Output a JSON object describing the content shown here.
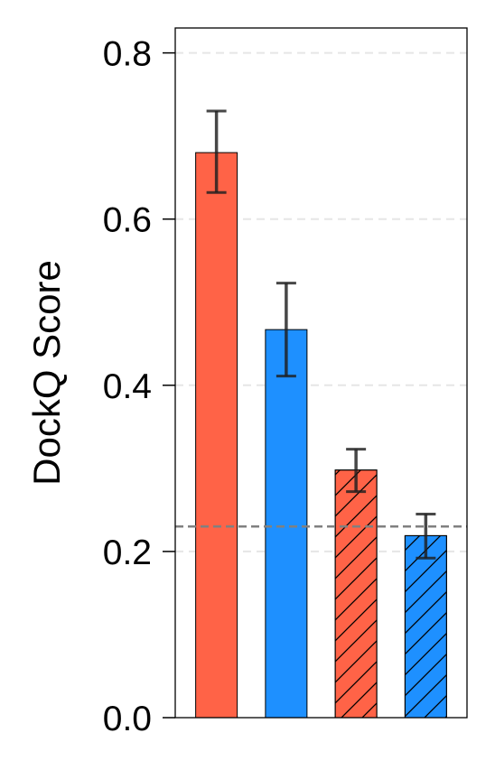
{
  "chart_data": {
    "type": "bar",
    "ylabel": "DockQ Score",
    "ylim": [
      0,
      0.83
    ],
    "yticks": [
      0.0,
      0.2,
      0.4,
      0.6,
      0.8
    ],
    "ytick_labels": [
      "0.0",
      "0.2",
      "0.4",
      "0.6",
      "0.8"
    ],
    "grid": "horizontal dashed",
    "bars": [
      {
        "value": 0.68,
        "err_low": 0.632,
        "err_high": 0.73,
        "color": "#FF6347",
        "hatched": false
      },
      {
        "value": 0.467,
        "err_low": 0.411,
        "err_high": 0.523,
        "color": "#1E90FF",
        "hatched": false
      },
      {
        "value": 0.298,
        "err_low": 0.272,
        "err_high": 0.323,
        "color": "#FF6347",
        "hatched": true
      },
      {
        "value": 0.219,
        "err_low": 0.192,
        "err_high": 0.245,
        "color": "#1E90FF",
        "hatched": true
      }
    ],
    "reference_line": 0.23,
    "reference_line_color": "#808080"
  }
}
